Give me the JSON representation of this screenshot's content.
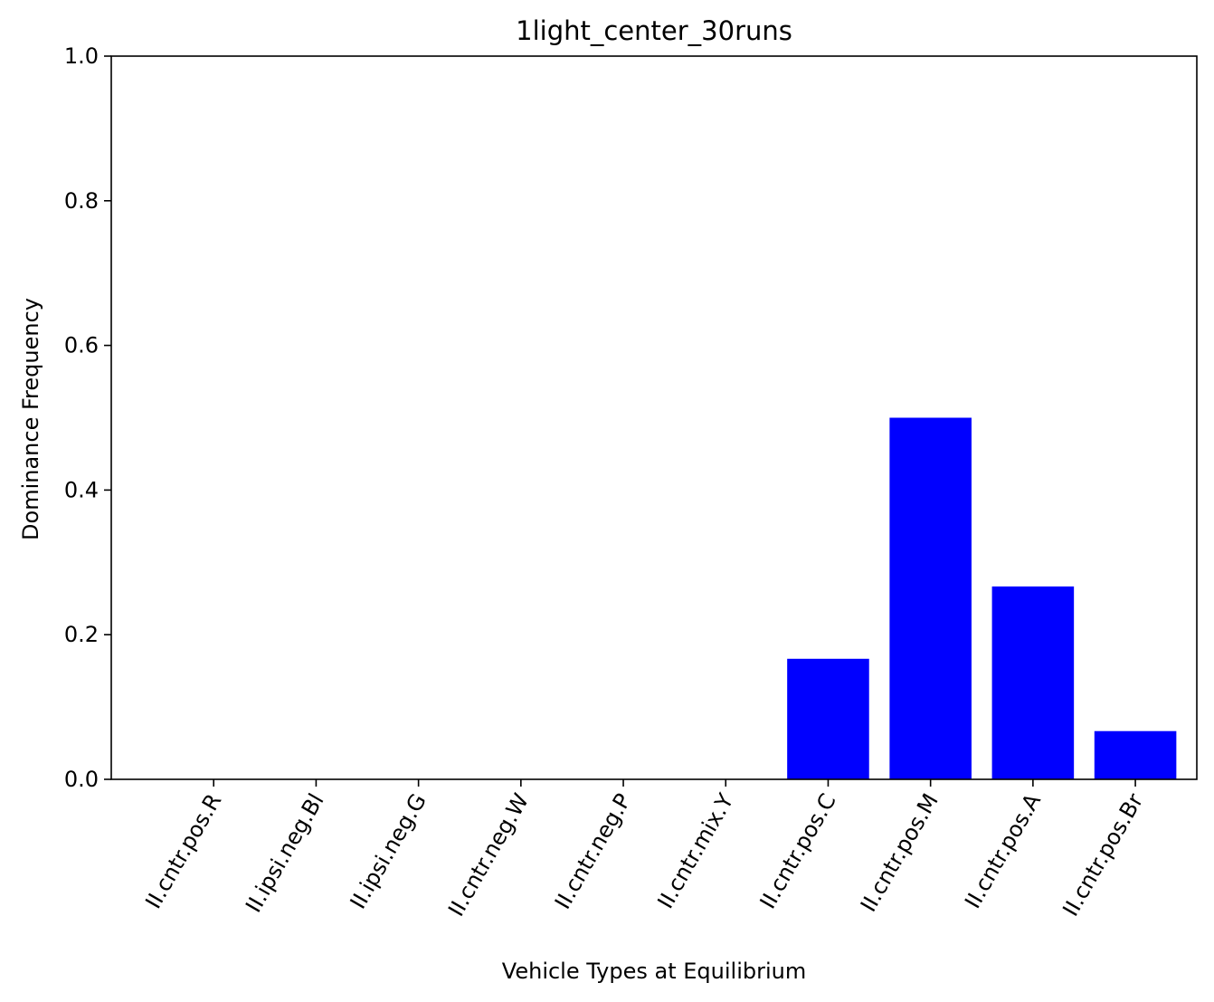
{
  "chart_data": {
    "type": "bar",
    "title": "1light_center_30runs",
    "xlabel": "Vehicle Types at Equilibrium",
    "ylabel": "Dominance Frequency",
    "categories": [
      "II.cntr.pos.R",
      "II.ipsi.neg.Bl",
      "II.ipsi.neg.G",
      "II.cntr.neg.W",
      "II.cntr.neg.P",
      "II.cntr.mix.Y",
      "II.cntr.pos.C",
      "II.cntr.pos.M",
      "II.cntr.pos.A",
      "II.cntr.pos.Br"
    ],
    "values": [
      0.0,
      0.0,
      0.0,
      0.0,
      0.0,
      0.0,
      0.1667,
      0.5,
      0.2667,
      0.0667
    ],
    "ylim": [
      0,
      1
    ],
    "yticks": [
      "0.0",
      "0.2",
      "0.4",
      "0.6",
      "0.8",
      "1.0"
    ],
    "bar_color": "#0000ff",
    "grid": false,
    "legend": "none"
  }
}
